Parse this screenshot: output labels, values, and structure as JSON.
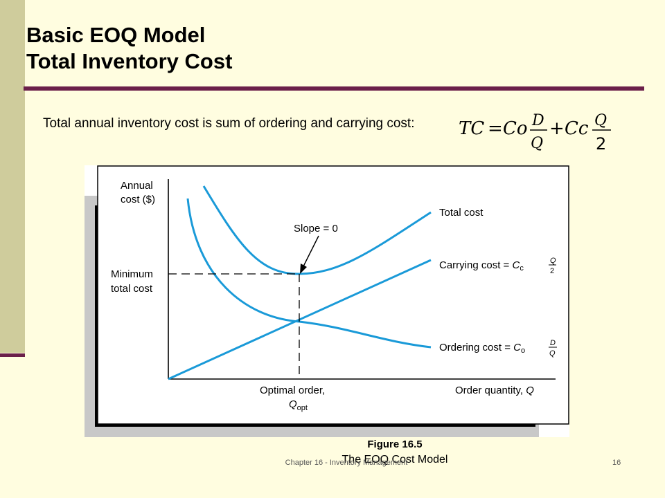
{
  "slide": {
    "title_line1": "Basic EOQ Model",
    "title_line2": "Total Inventory Cost",
    "subtitle": "Total annual inventory cost is sum of ordering and carrying cost:",
    "footer": "Chapter 16 - Inventory Management",
    "page_number": "16"
  },
  "formula": {
    "lhs": "TC",
    "eq": "=",
    "term1_coef": "Co",
    "term1_num": "D",
    "term1_den": "Q",
    "plus": "+",
    "term2_coef": "Cc",
    "term2_num": "Q",
    "term2_den": "2"
  },
  "figure": {
    "y_axis_label_1": "Annual",
    "y_axis_label_2": "cost ($)",
    "min_label_1": "Minimum",
    "min_label_2": "total cost",
    "slope_label": "Slope = 0",
    "total_cost_label": "Total cost",
    "carrying_label": "Carrying cost = ",
    "carrying_C": "C",
    "carrying_sub": "c",
    "carrying_num": "Q",
    "carrying_den": "2",
    "ordering_label": "Ordering cost = ",
    "ordering_C": "C",
    "ordering_sub": "o",
    "ordering_num": "D",
    "ordering_den": "Q",
    "x_opt_label": "Optimal order,",
    "x_opt_Q": "Q",
    "x_opt_sub": "opt",
    "x_axis_label": "Order quantity, ",
    "x_axis_Q": "Q",
    "caption": "Figure 16.5",
    "caption_sub": "The EOQ Cost Model",
    "curve_color": "#1a9ad8"
  }
}
